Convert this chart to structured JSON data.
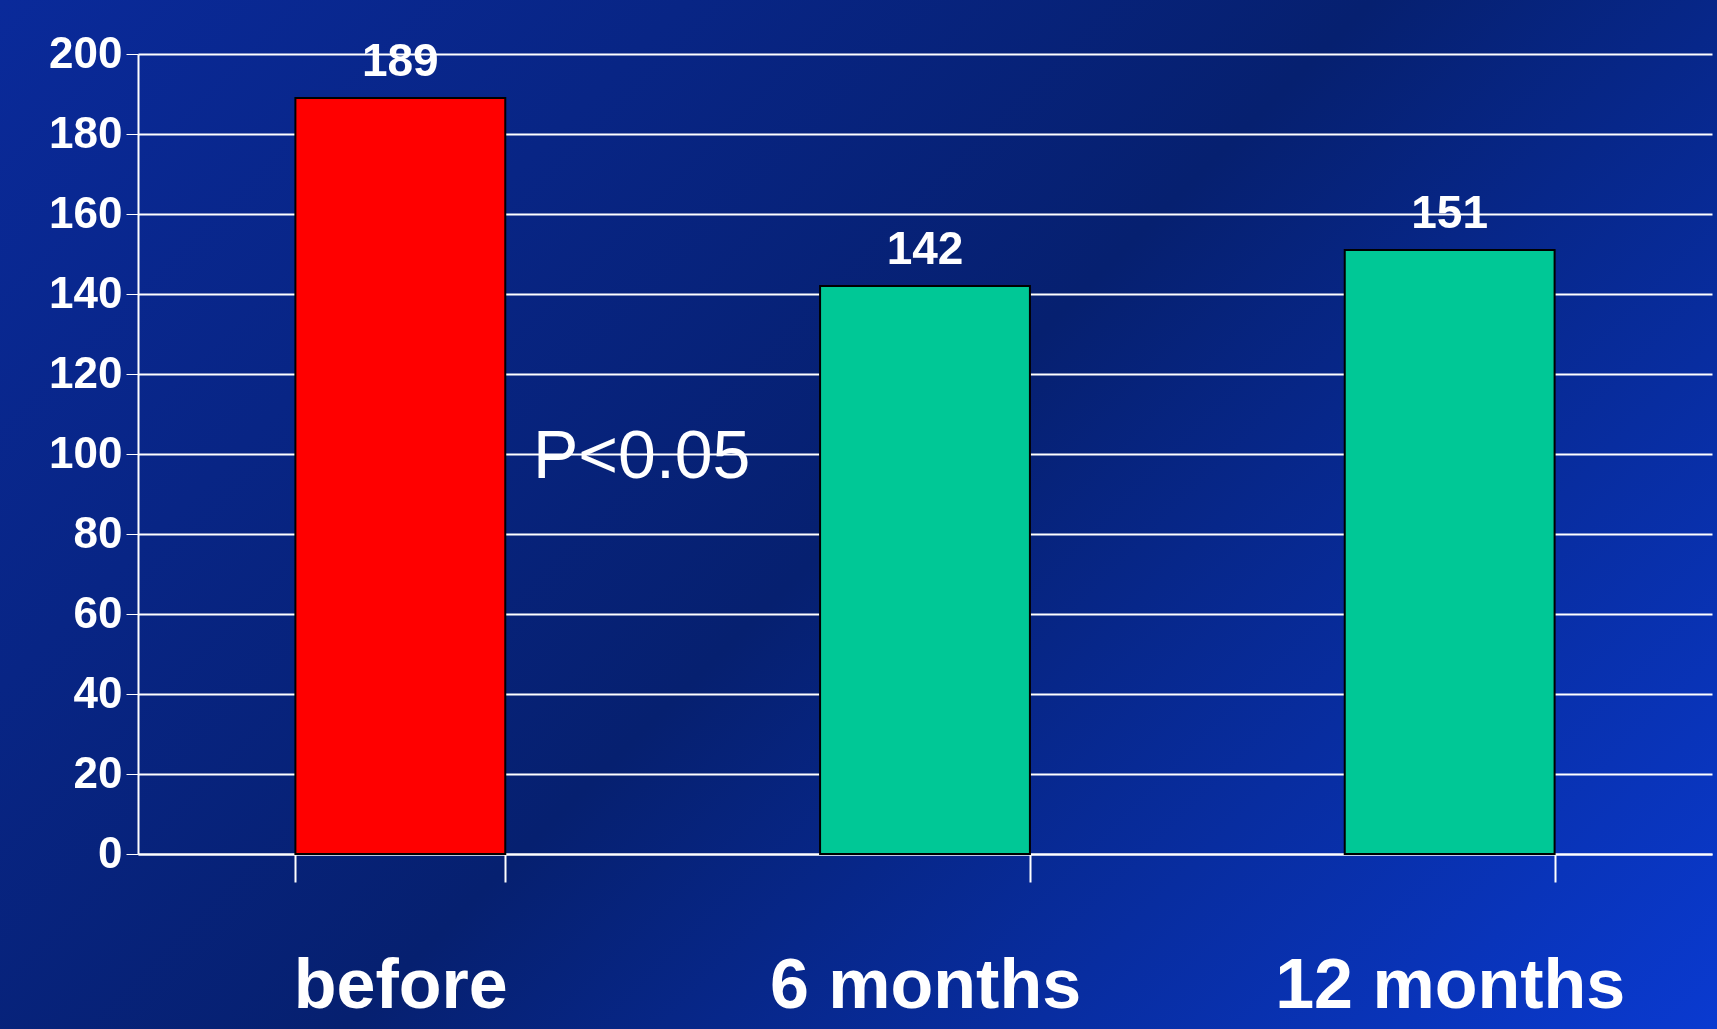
{
  "chart_data": {
    "type": "bar",
    "categories": [
      "before",
      "6 months",
      "12 months"
    ],
    "values": [
      189,
      142,
      151
    ],
    "colors": [
      "#ff0000",
      "#00c896",
      "#00c896"
    ],
    "ylim": [
      0,
      200
    ],
    "yticks": [
      0,
      20,
      40,
      60,
      80,
      100,
      120,
      140,
      160,
      180,
      200
    ],
    "grid": "y",
    "data_labels": true,
    "annotations": [
      "P<0.05"
    ]
  }
}
